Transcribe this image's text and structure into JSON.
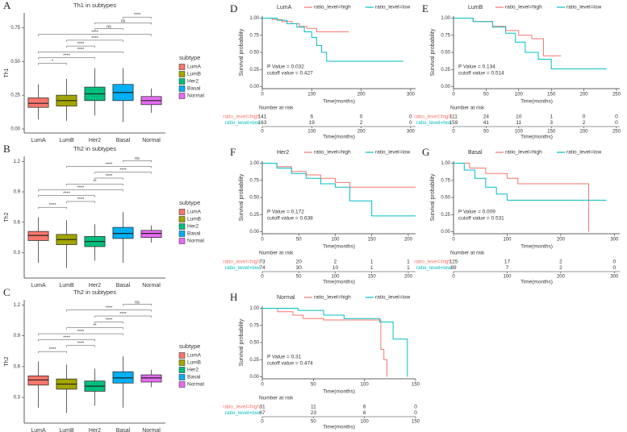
{
  "chart_data": [
    {
      "type": "box",
      "panel": "A",
      "title": "Th1 in subtypes",
      "ylabel": "Th1",
      "categories": [
        "LumA",
        "LumB",
        "Her2",
        "Basal",
        "Normal"
      ],
      "colors": [
        "#F8766D",
        "#A3A500",
        "#00BF7D",
        "#00B0F6",
        "#E76BF3"
      ],
      "boxes": [
        {
          "low": 0.07,
          "q1": 0.16,
          "median": 0.19,
          "q3": 0.23,
          "high": 0.33
        },
        {
          "low": 0.06,
          "q1": 0.17,
          "median": 0.21,
          "q3": 0.25,
          "high": 0.37
        },
        {
          "low": 0.1,
          "q1": 0.21,
          "median": 0.26,
          "q3": 0.31,
          "high": 0.45
        },
        {
          "low": 0.05,
          "q1": 0.21,
          "median": 0.27,
          "q3": 0.33,
          "high": 0.45
        },
        {
          "low": 0.12,
          "q1": 0.18,
          "median": 0.21,
          "q3": 0.24,
          "high": 0.3
        }
      ],
      "ylim": [
        -0.03,
        0.86
      ],
      "yticks": [
        {
          "value": 0,
          "label": "0.00"
        },
        {
          "value": 0.25,
          "label": "0.25"
        },
        {
          "value": 0.5,
          "label": "0.50"
        },
        {
          "value": 0.75,
          "label": "0.75"
        }
      ],
      "legend_title": "subtype",
      "comparisons": [
        {
          "groups": [
            "LumA",
            "LumB"
          ],
          "label": "*"
        },
        {
          "groups": [
            "LumA",
            "Her2"
          ],
          "label": "****"
        },
        {
          "groups": [
            "LumA",
            "Basal"
          ],
          "label": "****"
        },
        {
          "groups": [
            "LumB",
            "Her2"
          ],
          "label": "****"
        },
        {
          "groups": [
            "LumB",
            "Basal"
          ],
          "label": "****"
        },
        {
          "groups": [
            "LumA",
            "Normal"
          ],
          "label": "****"
        },
        {
          "groups": [
            "Her2",
            "Basal"
          ],
          "label": "ns"
        },
        {
          "groups": [
            "Her2",
            "Normal"
          ],
          "label": "ns"
        },
        {
          "groups": [
            "Basal",
            "Normal"
          ],
          "label": "****"
        }
      ]
    },
    {
      "type": "box",
      "panel": "B",
      "title": "Th2 in subtypes",
      "ylabel": "Th2",
      "categories": [
        "LumA",
        "LumB",
        "Her2",
        "Basal",
        "Normal"
      ],
      "colors": [
        "#F8766D",
        "#A3A500",
        "#00BF7D",
        "#00B0F6",
        "#E76BF3"
      ],
      "boxes": [
        {
          "low": 0.2,
          "q1": 0.42,
          "median": 0.47,
          "q3": 0.51,
          "high": 0.65
        },
        {
          "low": 0.15,
          "q1": 0.38,
          "median": 0.43,
          "q3": 0.48,
          "high": 0.62
        },
        {
          "low": 0.22,
          "q1": 0.36,
          "median": 0.41,
          "q3": 0.46,
          "high": 0.58
        },
        {
          "low": 0.2,
          "q1": 0.44,
          "median": 0.49,
          "q3": 0.55,
          "high": 0.7
        },
        {
          "low": 0.4,
          "q1": 0.45,
          "median": 0.49,
          "q3": 0.52,
          "high": 0.57
        }
      ],
      "ylim": [
        0.05,
        1.25
      ],
      "yticks": [
        0.3,
        0.6,
        0.9,
        1.2
      ],
      "legend_title": "subtype",
      "comparisons": [
        {
          "groups": [
            "LumA",
            "LumB"
          ],
          "label": "****"
        },
        {
          "groups": [
            "LumB",
            "Her2"
          ],
          "label": "****"
        },
        {
          "groups": [
            "LumA",
            "Her2"
          ],
          "label": "****"
        },
        {
          "groups": [
            "LumA",
            "Basal"
          ],
          "label": "****"
        },
        {
          "groups": [
            "LumB",
            "Basal"
          ],
          "label": "**"
        },
        {
          "groups": [
            "Her2",
            "Basal"
          ],
          "label": "****"
        },
        {
          "groups": [
            "Her2",
            "Normal"
          ],
          "label": "****"
        },
        {
          "groups": [
            "LumB",
            "Normal"
          ],
          "label": "****"
        },
        {
          "groups": [
            "Basal",
            "Normal"
          ],
          "label": "ns"
        }
      ]
    },
    {
      "type": "box",
      "panel": "C",
      "title": "Th2 in subtypes",
      "ylabel": "Th2",
      "categories": [
        "LumA",
        "LumB",
        "Her2",
        "Basal",
        "Normal"
      ],
      "colors": [
        "#F8766D",
        "#A3A500",
        "#00BF7D",
        "#00B0F6",
        "#E76BF3"
      ],
      "boxes": [
        {
          "low": 0.2,
          "q1": 0.42,
          "median": 0.47,
          "q3": 0.51,
          "high": 0.65
        },
        {
          "low": 0.15,
          "q1": 0.38,
          "median": 0.43,
          "q3": 0.48,
          "high": 0.62
        },
        {
          "low": 0.22,
          "q1": 0.36,
          "median": 0.41,
          "q3": 0.46,
          "high": 0.58
        },
        {
          "low": 0.2,
          "q1": 0.44,
          "median": 0.49,
          "q3": 0.55,
          "high": 0.7
        },
        {
          "low": 0.4,
          "q1": 0.45,
          "median": 0.49,
          "q3": 0.52,
          "high": 0.57
        }
      ],
      "ylim": [
        0.05,
        1.25
      ],
      "yticks": [
        0.3,
        0.6,
        0.9,
        1.2
      ],
      "legend_title": "subtype",
      "comparisons": [
        {
          "groups": [
            "LumA",
            "LumB"
          ],
          "label": "****"
        },
        {
          "groups": [
            "LumB",
            "Her2"
          ],
          "label": "****"
        },
        {
          "groups": [
            "LumA",
            "Her2"
          ],
          "label": "****"
        },
        {
          "groups": [
            "LumA",
            "Basal"
          ],
          "label": "****"
        },
        {
          "groups": [
            "LumB",
            "Basal"
          ],
          "label": "**"
        },
        {
          "groups": [
            "Her2",
            "Basal"
          ],
          "label": "****"
        },
        {
          "groups": [
            "Her2",
            "Normal"
          ],
          "label": "****"
        },
        {
          "groups": [
            "LumB",
            "Normal"
          ],
          "label": "****"
        },
        {
          "groups": [
            "Basal",
            "Normal"
          ],
          "label": "ns"
        }
      ]
    },
    {
      "type": "survival",
      "panel": "D",
      "title": "LumA",
      "ylabel": "Survival probability",
      "xlabel": "Time(months)",
      "series": [
        {
          "name": "ratio_level=high",
          "color": "#F8766D",
          "x": [
            0,
            20,
            20,
            40,
            40,
            60,
            60,
            75,
            75,
            90,
            90,
            110,
            110,
            175
          ],
          "values": [
            1,
            1,
            0.98,
            0.98,
            0.95,
            0.95,
            0.92,
            0.92,
            0.88,
            0.88,
            0.85,
            0.85,
            0.8,
            0.8
          ]
        },
        {
          "name": "ratio_level=low",
          "color": "#00BFC4",
          "x": [
            0,
            30,
            30,
            50,
            50,
            70,
            70,
            85,
            85,
            100,
            100,
            110,
            110,
            120,
            120,
            130,
            130,
            285
          ],
          "values": [
            1,
            1,
            0.97,
            0.97,
            0.92,
            0.92,
            0.87,
            0.87,
            0.8,
            0.8,
            0.72,
            0.72,
            0.6,
            0.6,
            0.5,
            0.5,
            0.37,
            0.37
          ]
        }
      ],
      "xlim": [
        0,
        310
      ],
      "xticks": [
        0,
        100,
        200,
        300
      ],
      "ylim": [
        -0.03,
        1.03
      ],
      "yticks": [
        {
          "value": 0,
          "label": "0.00"
        },
        {
          "value": 0.25,
          "label": "0.25"
        },
        {
          "value": 0.5,
          "label": "0.50"
        },
        {
          "value": 0.75,
          "label": "0.75"
        },
        {
          "value": 1,
          "label": "1.00"
        }
      ],
      "annotations": [
        "P Value = 0.032",
        "cutoff value = 0.427"
      ],
      "risk_table": {
        "title": "Number at risk",
        "counts": [
          [
            141,
            6,
            0,
            0
          ],
          [
            163,
            19,
            2,
            0
          ]
        ]
      }
    },
    {
      "type": "survival",
      "panel": "E",
      "title": "LumB",
      "ylabel": "Survival probability",
      "xlabel": "Time(months)",
      "series": [
        {
          "name": "ratio_level=high",
          "color": "#F8766D",
          "x": [
            0,
            30,
            30,
            60,
            60,
            80,
            80,
            100,
            100,
            120,
            120,
            138,
            138,
            165
          ],
          "values": [
            1,
            1,
            0.95,
            0.95,
            0.88,
            0.88,
            0.82,
            0.82,
            0.75,
            0.75,
            0.7,
            0.7,
            0.45,
            0.45
          ]
        },
        {
          "name": "ratio_level=low",
          "color": "#00BFC4",
          "x": [
            0,
            30,
            30,
            60,
            60,
            80,
            80,
            95,
            95,
            110,
            110,
            130,
            130,
            150,
            150,
            235
          ],
          "values": [
            1,
            1,
            0.95,
            0.95,
            0.87,
            0.87,
            0.78,
            0.78,
            0.65,
            0.65,
            0.5,
            0.5,
            0.4,
            0.4,
            0.26,
            0.26
          ]
        }
      ],
      "xlim": [
        0,
        255
      ],
      "xticks": [
        0,
        50,
        100,
        150,
        200,
        250
      ],
      "ylim": [
        -0.03,
        1.03
      ],
      "yticks": [
        {
          "value": 0,
          "label": "0.00"
        },
        {
          "value": 0.25,
          "label": "0.25"
        },
        {
          "value": 0.5,
          "label": "0.50"
        },
        {
          "value": 0.75,
          "label": "0.75"
        },
        {
          "value": 1,
          "label": "1.00"
        }
      ],
      "annotations": [
        "P Value = 0.134",
        "cutoff value = 0.514"
      ],
      "risk_table": {
        "title": "Number at risk",
        "counts": [
          [
            111,
            24,
            10,
            1,
            0,
            0
          ],
          [
            159,
            41,
            11,
            3,
            2,
            0
          ]
        ]
      }
    },
    {
      "type": "survival",
      "panel": "F",
      "title": "Her2",
      "ylabel": "Survival probability",
      "xlabel": "Time(months)",
      "series": [
        {
          "name": "ratio_level=high",
          "color": "#F8766D",
          "x": [
            0,
            20,
            20,
            40,
            40,
            60,
            60,
            80,
            80,
            100,
            100,
            120,
            120,
            210
          ],
          "values": [
            1,
            1,
            0.95,
            0.95,
            0.88,
            0.88,
            0.83,
            0.83,
            0.78,
            0.78,
            0.72,
            0.72,
            0.65,
            0.65
          ]
        },
        {
          "name": "ratio_level=low",
          "color": "#00BFC4",
          "x": [
            0,
            20,
            20,
            40,
            40,
            60,
            60,
            80,
            80,
            100,
            100,
            120,
            120,
            150,
            150,
            210
          ],
          "values": [
            1,
            1,
            0.93,
            0.93,
            0.85,
            0.85,
            0.78,
            0.78,
            0.7,
            0.7,
            0.65,
            0.65,
            0.45,
            0.45,
            0.23,
            0.23
          ]
        }
      ],
      "xlim": [
        0,
        210
      ],
      "xticks": [
        0,
        50,
        100,
        150,
        200
      ],
      "ylim": [
        -0.03,
        1.03
      ],
      "yticks": [
        {
          "value": 0,
          "label": "0.00"
        },
        {
          "value": 0.25,
          "label": "0.25"
        },
        {
          "value": 0.5,
          "label": "0.50"
        },
        {
          "value": 0.75,
          "label": "0.75"
        },
        {
          "value": 1,
          "label": "1.00"
        }
      ],
      "annotations": [
        "P Value = 0.172",
        "cutoff value = 0.638"
      ],
      "risk_table": {
        "title": "Number at risk",
        "counts": [
          [
            73,
            20,
            2,
            1,
            1
          ],
          [
            74,
            30,
            10,
            1,
            1
          ]
        ]
      }
    },
    {
      "type": "survival",
      "panel": "G",
      "title": "Basal",
      "ylabel": "Survival probability",
      "xlabel": "Time(months)",
      "series": [
        {
          "name": "ratio_level=high",
          "color": "#F8766D",
          "x": [
            0,
            30,
            30,
            60,
            60,
            100,
            100,
            120,
            120,
            252,
            252
          ],
          "values": [
            1,
            1,
            0.93,
            0.93,
            0.85,
            0.85,
            0.78,
            0.78,
            0.7,
            0.7,
            0
          ]
        },
        {
          "name": "ratio_level=low",
          "color": "#00BFC4",
          "x": [
            0,
            20,
            20,
            40,
            40,
            60,
            60,
            80,
            80,
            100,
            100,
            285
          ],
          "values": [
            1,
            1,
            0.9,
            0.9,
            0.78,
            0.78,
            0.65,
            0.65,
            0.55,
            0.55,
            0.46,
            0.46
          ]
        }
      ],
      "xlim": [
        0,
        310
      ],
      "xticks": [
        0,
        100,
        200,
        300
      ],
      "ylim": [
        -0.03,
        1.03
      ],
      "yticks": [
        {
          "value": 0,
          "label": "0.00"
        },
        {
          "value": 0.25,
          "label": "0.25"
        },
        {
          "value": 0.5,
          "label": "0.50"
        },
        {
          "value": 0.75,
          "label": "0.75"
        },
        {
          "value": 1,
          "label": "1.00"
        }
      ],
      "annotations": [
        "P Value = 0.009",
        "cutoff value = 0.531"
      ],
      "risk_table": {
        "title": "Number at risk",
        "counts": [
          [
            125,
            17,
            2,
            0
          ],
          [
            89,
            7,
            2,
            0
          ]
        ]
      }
    },
    {
      "type": "survival",
      "panel": "H",
      "title": "Normal",
      "ylabel": "Survival probability",
      "xlabel": "Time(months)",
      "series": [
        {
          "name": "ratio_level=high",
          "color": "#F8766D",
          "x": [
            0,
            15,
            15,
            30,
            30,
            40,
            40,
            60,
            60,
            116,
            116,
            119,
            119,
            122,
            122
          ],
          "values": [
            1,
            1,
            0.95,
            0.95,
            0.9,
            0.9,
            0.85,
            0.85,
            0.83,
            0.83,
            0.4,
            0.4,
            0.25,
            0.25,
            0
          ]
        },
        {
          "name": "ratio_level=low",
          "color": "#00BFC4",
          "x": [
            0,
            35,
            35,
            60,
            60,
            80,
            80,
            115,
            115,
            128,
            128,
            142,
            142
          ],
          "values": [
            1,
            1,
            0.97,
            0.97,
            0.9,
            0.9,
            0.85,
            0.85,
            0.8,
            0.8,
            0.55,
            0.55,
            0
          ]
        }
      ],
      "xlim": [
        0,
        150
      ],
      "xticks": [
        0,
        50,
        100,
        150
      ],
      "ylim": [
        -0.03,
        1.03
      ],
      "yticks": [
        {
          "value": 0,
          "label": "0.00"
        },
        {
          "value": 0.25,
          "label": "0.25"
        },
        {
          "value": 0.5,
          "label": "0.50"
        },
        {
          "value": 0.75,
          "label": "0.75"
        },
        {
          "value": 1,
          "label": "1.00"
        }
      ],
      "annotations": [
        "P Value = 0.31",
        "cutoff value = 0.474"
      ],
      "risk_table": {
        "title": "Number at risk",
        "counts": [
          [
            31,
            11,
            6,
            0
          ],
          [
            67,
            23,
            6,
            0
          ]
        ]
      }
    }
  ]
}
